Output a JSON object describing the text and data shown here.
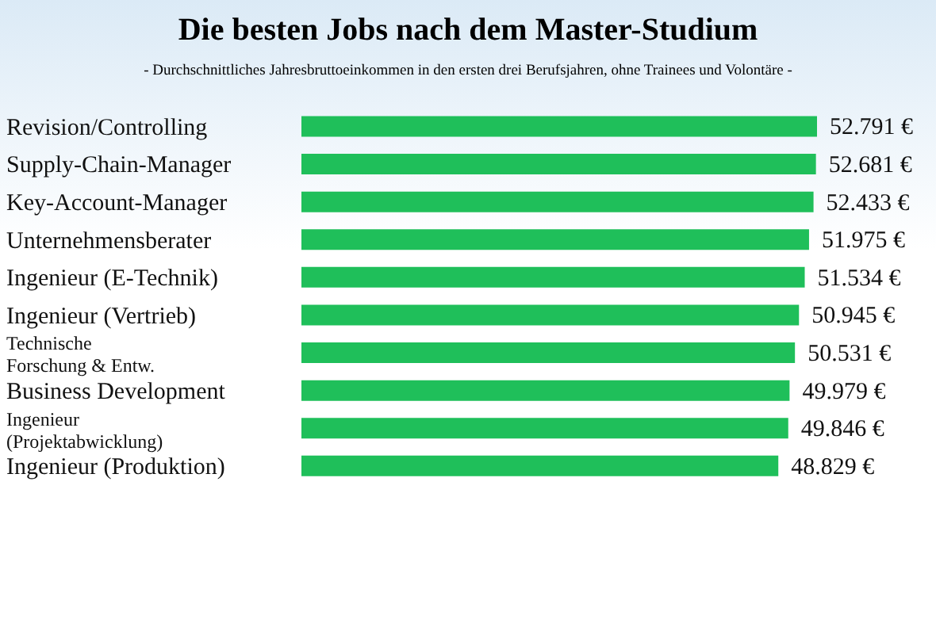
{
  "chart_data": {
    "type": "bar",
    "orientation": "horizontal",
    "title": "Die besten Jobs nach dem Master-Studium",
    "subtitle": "- Durchschnittliches Jahresbruttoeinkommen in den ersten drei Berufsjahren, ohne Trainees und Volontäre -",
    "categories": [
      "Revision/Controlling",
      "Supply-Chain-Manager",
      "Key-Account-Manager",
      "Unternehmensberater",
      "Ingenieur (E-Technik)",
      "Ingenieur (Vertrieb)",
      "Technische Forschung & Entw.",
      "Business Development",
      "Ingenieur (Projektabwicklung)",
      "Ingenieur (Produktion)"
    ],
    "values": [
      52791,
      52681,
      52433,
      51975,
      51534,
      50945,
      50531,
      49979,
      49846,
      48829
    ],
    "value_labels": [
      "52.791 €",
      "52.681 €",
      "52.433 €",
      "51.975 €",
      "51.534 €",
      "50.945 €",
      "50.531 €",
      "49.979 €",
      "49.846 €",
      "48.829 €"
    ],
    "color": "#1fbf5a",
    "tick_labels": false
  }
}
